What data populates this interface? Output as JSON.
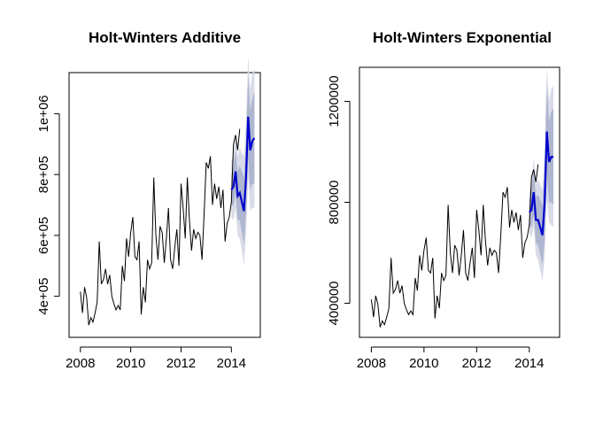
{
  "chart_data": [
    {
      "type": "line",
      "title": "Holt-Winters Additive",
      "xlabel": "",
      "ylabel": "",
      "xlim": [
        2007.55,
        2015.15
      ],
      "ylim": [
        265000,
        1135000
      ],
      "x_ticks": [
        2008,
        2010,
        2012,
        2014
      ],
      "x_tick_labels": [
        "2008",
        "2010",
        "2012",
        "2014"
      ],
      "y_ticks": [
        400000,
        600000,
        800000,
        1000000
      ],
      "y_tick_labels": [
        "4e+05",
        "6e+05",
        "8e+05",
        "1e+06"
      ],
      "grid": false,
      "series": [
        {
          "role": "history",
          "color": "#000000",
          "start": 2008.0,
          "frequency": 12,
          "values": [
            415000,
            345000,
            430000,
            395000,
            305000,
            330000,
            315000,
            345000,
            380000,
            580000,
            440000,
            455000,
            490000,
            440000,
            470000,
            400000,
            375000,
            355000,
            370000,
            355000,
            500000,
            450000,
            590000,
            530000,
            610000,
            660000,
            530000,
            520000,
            580000,
            340000,
            430000,
            380000,
            520000,
            490000,
            510000,
            790000,
            600000,
            520000,
            630000,
            610000,
            510000,
            590000,
            690000,
            520000,
            490000,
            560000,
            620000,
            500000,
            770000,
            690000,
            590000,
            790000,
            650000,
            550000,
            620000,
            590000,
            610000,
            600000,
            520000,
            670000,
            840000,
            820000,
            860000,
            700000,
            770000,
            720000,
            760000,
            690000,
            750000,
            580000,
            640000,
            660000,
            710000,
            900000,
            930000,
            880000,
            950000
          ]
        },
        {
          "role": "forecast",
          "color": "#0000cd",
          "start": 2014.0,
          "frequency": 12,
          "values": [
            750000,
            760000,
            810000,
            730000,
            740000,
            710000,
            680000,
            790000,
            990000,
            880000,
            910000,
            920000
          ],
          "lower_80": [
            700000,
            700000,
            740000,
            650000,
            650000,
            610000,
            570000,
            670000,
            860000,
            750000,
            770000,
            770000
          ],
          "upper_80": [
            800000,
            820000,
            880000,
            810000,
            830000,
            810000,
            790000,
            910000,
            1120000,
            1010000,
            1050000,
            1070000
          ],
          "lower_95": [
            660000,
            650000,
            690000,
            600000,
            590000,
            550000,
            500000,
            600000,
            790000,
            680000,
            690000,
            690000
          ],
          "upper_95": [
            840000,
            870000,
            930000,
            860000,
            890000,
            870000,
            860000,
            980000,
            1190000,
            1080000,
            1130000,
            1150000
          ]
        }
      ],
      "band_colors": {
        "band_95": "#d9dce8",
        "band_80": "#aeb6d0"
      }
    },
    {
      "type": "line",
      "title": "Holt-Winters Exponential",
      "xlabel": "",
      "ylabel": "",
      "xlim": [
        2007.55,
        2015.15
      ],
      "ylim": [
        265000,
        1335000
      ],
      "x_ticks": [
        2008,
        2010,
        2012,
        2014
      ],
      "x_tick_labels": [
        "2008",
        "2010",
        "2012",
        "2014"
      ],
      "y_ticks": [
        400000,
        800000,
        1200000
      ],
      "y_tick_labels": [
        "400000",
        "800000",
        "1200000"
      ],
      "grid": false,
      "series": [
        {
          "role": "history",
          "color": "#000000",
          "start": 2008.0,
          "frequency": 12,
          "values": [
            415000,
            345000,
            430000,
            395000,
            305000,
            330000,
            315000,
            345000,
            380000,
            580000,
            440000,
            455000,
            490000,
            440000,
            470000,
            400000,
            375000,
            355000,
            370000,
            355000,
            500000,
            450000,
            590000,
            530000,
            610000,
            660000,
            530000,
            520000,
            580000,
            340000,
            430000,
            380000,
            520000,
            490000,
            510000,
            790000,
            600000,
            520000,
            630000,
            610000,
            510000,
            590000,
            690000,
            520000,
            490000,
            560000,
            620000,
            500000,
            770000,
            690000,
            590000,
            790000,
            650000,
            550000,
            620000,
            590000,
            610000,
            600000,
            520000,
            670000,
            840000,
            820000,
            860000,
            700000,
            770000,
            720000,
            760000,
            690000,
            750000,
            580000,
            640000,
            660000,
            710000,
            900000,
            930000,
            880000,
            950000
          ]
        },
        {
          "role": "forecast",
          "color": "#0000cd",
          "start": 2014.0,
          "frequency": 12,
          "values": [
            760000,
            770000,
            840000,
            730000,
            730000,
            700000,
            670000,
            800000,
            1080000,
            960000,
            980000,
            980000
          ],
          "lower_80": [
            710000,
            700000,
            750000,
            640000,
            630000,
            590000,
            550000,
            650000,
            900000,
            800000,
            800000,
            790000
          ],
          "upper_80": [
            810000,
            840000,
            930000,
            820000,
            830000,
            810000,
            790000,
            950000,
            1260000,
            1120000,
            1160000,
            1170000
          ],
          "lower_95": [
            680000,
            660000,
            700000,
            590000,
            570000,
            530000,
            490000,
            580000,
            820000,
            720000,
            710000,
            700000
          ],
          "upper_95": [
            840000,
            880000,
            980000,
            870000,
            890000,
            870000,
            850000,
            1020000,
            1340000,
            1200000,
            1250000,
            1260000
          ]
        }
      ],
      "band_colors": {
        "band_95": "#d9dce8",
        "band_80": "#aeb6d0"
      }
    }
  ]
}
